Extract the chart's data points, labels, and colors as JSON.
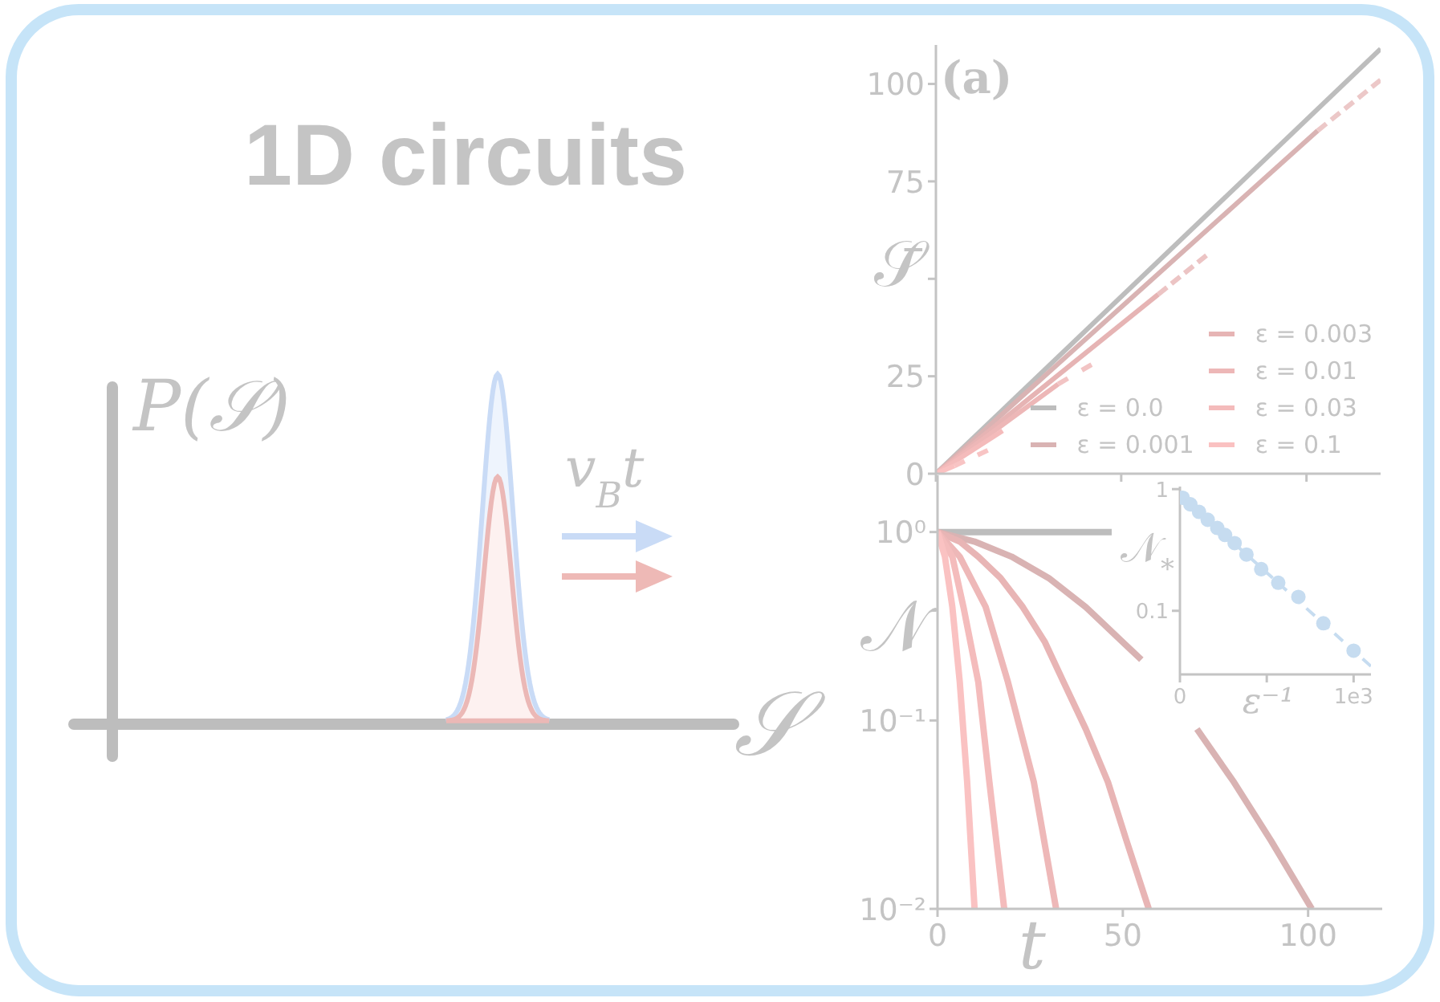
{
  "chart_data": [
    {
      "type": "other",
      "title": "1D circuits",
      "annotations": [
        "P(𝒮)",
        "v$_{B}$t",
        "𝒮"
      ]
    },
    {
      "type": "line",
      "ylabel": "𝒮̄",
      "annotations": [
        "(a)"
      ],
      "xlim": [
        0,
        120
      ],
      "xticks": [
        0,
        50,
        100
      ],
      "ylim": [
        0,
        110
      ],
      "yticks": [
        0,
        25,
        {
          "value": 50,
          "label": null
        },
        75,
        100
      ],
      "tick_labels": "y",
      "legend": "bottom right",
      "series": [
        {
          "name": "ε = 0.0",
          "color": "#bdbdbd",
          "x": [
            0,
            120
          ],
          "values": [
            0,
            109
          ]
        },
        {
          "name": "ε = 0.001",
          "color": "#d9b3b3",
          "x": [
            0,
            103
          ],
          "values": [
            0,
            88
          ]
        },
        {
          "name": "ε = 0.003",
          "color": "#e6b4b4",
          "x": [
            0,
            60
          ],
          "values": [
            0,
            46
          ]
        },
        {
          "name": "ε = 0.01",
          "color": "#edb7b7",
          "x": [
            0,
            33
          ],
          "values": [
            0,
            23
          ]
        },
        {
          "name": "ε = 0.03",
          "color": "#f4bbbb",
          "x": [
            0,
            18
          ],
          "values": [
            0,
            11
          ]
        },
        {
          "name": "ε = 0.1",
          "color": "#fac1c1",
          "x": [
            0,
            5
          ],
          "values": [
            0,
            2
          ]
        },
        {
          "color": "#ecc8c8",
          "line_style": "dashed",
          "x": [
            103,
            120
          ],
          "values": [
            88,
            101
          ]
        },
        {
          "color": "#ecc4c4",
          "line_style": "dashed",
          "x": [
            60,
            73
          ],
          "values": [
            46,
            56
          ]
        },
        {
          "color": "#f2c4c4",
          "line_style": "dashed",
          "x": [
            33,
            42
          ],
          "values": [
            23,
            28
          ]
        },
        {
          "color": "#f8c4c4",
          "line_style": "dashed",
          "x": [
            5,
            14
          ],
          "values": [
            2,
            6
          ]
        }
      ]
    },
    {
      "type": "line",
      "xlabel": "t",
      "ylabel": "𝒩",
      "log": true,
      "xlim": [
        0,
        120
      ],
      "xticks": [
        0,
        50,
        100
      ],
      "ylim": [
        0.01,
        2
      ],
      "yticks": [
        {
          "value": 0.01,
          "label": "10⁻²"
        },
        {
          "value": 0.1,
          "label": "10⁻¹"
        },
        {
          "value": 1,
          "label": "10⁰"
        }
      ],
      "series": [
        {
          "color": "#bdbdbd",
          "x": [
            0,
            47
          ],
          "values": [
            1,
            1
          ]
        },
        {
          "color": "#d9b3b3",
          "x": [
            0,
            10,
            20,
            30,
            40,
            50,
            55,
            60,
            70,
            80,
            90,
            101
          ],
          "values": [
            1,
            0.89,
            0.74,
            0.57,
            0.4,
            0.26,
            0.21,
            null,
            0.09,
            0.047,
            0.023,
            0.01
          ]
        },
        {
          "color": "#e8b5b5",
          "x": [
            0,
            6,
            11,
            17,
            23,
            29,
            34,
            40,
            46,
            51,
            57
          ],
          "values": [
            1,
            0.89,
            0.74,
            0.57,
            0.4,
            0.26,
            0.16,
            0.09,
            0.047,
            0.023,
            0.01
          ]
        },
        {
          "color": "#eeb8b8",
          "x": [
            0,
            6,
            13,
            19,
            26,
            32
          ],
          "values": [
            1,
            0.74,
            0.4,
            0.16,
            0.047,
            0.01
          ]
        },
        {
          "color": "#f4bcbc",
          "x": [
            0,
            4,
            7,
            11,
            14,
            18
          ],
          "values": [
            1,
            0.74,
            0.4,
            0.16,
            0.047,
            0.01
          ]
        },
        {
          "color": "#fac2c2",
          "x": [
            0,
            2,
            4,
            6,
            8,
            10
          ],
          "values": [
            1,
            0.74,
            0.4,
            0.16,
            0.047,
            0.01
          ]
        }
      ]
    },
    {
      "type": "scatter",
      "xlabel": "ε⁻¹",
      "ylabel": "𝒩$_{*}$",
      "log": true,
      "xlim": [
        0,
        1100
      ],
      "xticks": [
        0,
        {
          "value": 500,
          "label": null
        },
        {
          "value": 1000,
          "label": "1e3"
        }
      ],
      "ylim": [
        0.03,
        1.05
      ],
      "yticks": [
        0.1,
        1
      ],
      "series": [
        {
          "color": "#c6dcf0",
          "marker": "circle",
          "x": [
            16,
            60,
            110,
            160,
            215,
            260,
            315,
            383,
            468,
            566,
            682,
            826,
            1000
          ],
          "values": [
            0.85,
            0.75,
            0.65,
            0.56,
            0.48,
            0.42,
            0.36,
            0.29,
            0.22,
            0.17,
            0.13,
            0.079,
            0.047
          ]
        },
        {
          "type": "line",
          "line_style": "dashed",
          "color": "#c6dcf0",
          "x": [
            0,
            1100
          ],
          "values": [
            0.9,
            0.035
          ]
        }
      ]
    }
  ]
}
